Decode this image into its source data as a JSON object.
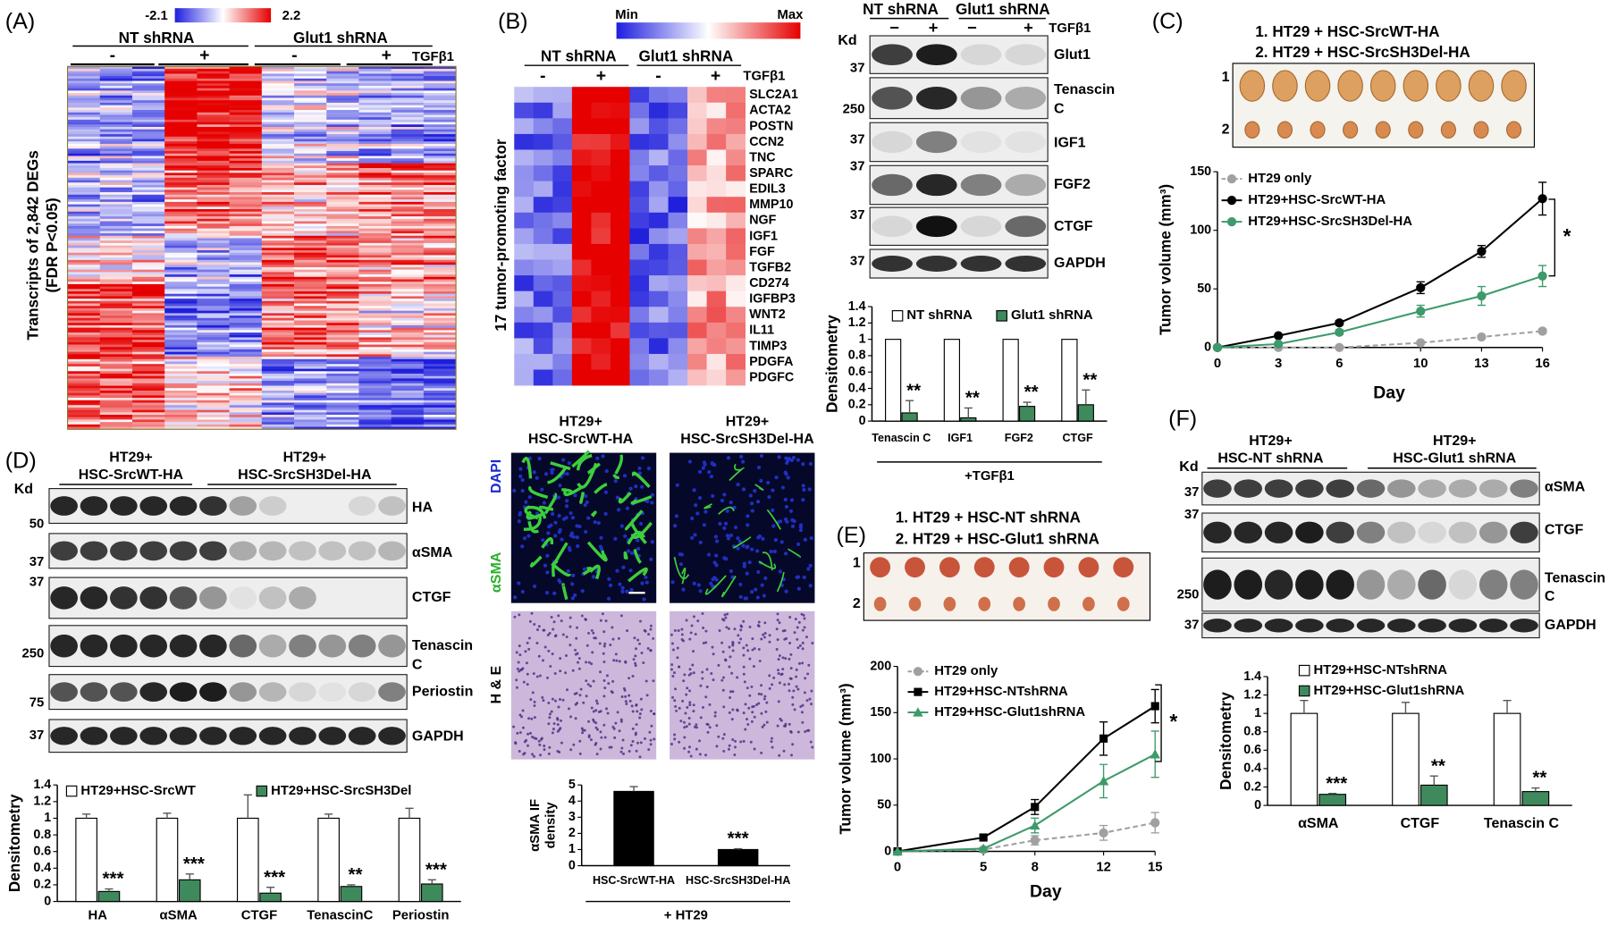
{
  "figure": {
    "panel_labels": [
      "(A)",
      "(B)",
      "(C)",
      "(D)",
      "(E)",
      "(F)"
    ],
    "panel_a": {
      "scale": [
        "-2.1",
        "2.2"
      ],
      "groups": [
        "NT shRNA",
        "Glut1 shRNA"
      ],
      "signs": [
        "-",
        "+",
        "-",
        "+"
      ],
      "treatment": "TGFβ1",
      "y_label": [
        "Transcripts of 2,842 DEGs",
        "(FDR P<0.05)"
      ]
    },
    "panel_b": {
      "scale": [
        "Min",
        "Max"
      ],
      "groups": [
        "NT shRNA",
        "Glut1 shRNA"
      ],
      "signs": [
        "-",
        "+",
        "-",
        "+"
      ],
      "treatment": "TGFβ1",
      "y_label": "17 tumor-promoting factor",
      "genes": [
        "SLC2A1",
        "ACTA2",
        "POSTN",
        "CCN2",
        "TNC",
        "SPARC",
        "EDIL3",
        "MMP10",
        "NGF",
        "IGF1",
        "FGF",
        "TGFB2",
        "CD274",
        "IGFBP3",
        "WNT2",
        "IL11",
        "TIMP3",
        "PDGFA",
        "PDGFC"
      ]
    },
    "blot_b": {
      "kd": "Kd",
      "groups": [
        "NT shRNA",
        "Glut1 shRNA"
      ],
      "signs": [
        "−",
        "+",
        "−",
        "+"
      ],
      "treatment": "TGFβ1",
      "proteins": [
        [
          "Glut1"
        ],
        [
          "Tenascin",
          "C"
        ],
        [
          "IGF1"
        ],
        [
          "FGF2"
        ],
        [
          "CTGF"
        ],
        [
          "GAPDH"
        ]
      ],
      "markers": [
        "37",
        "250",
        "37",
        "37",
        "37",
        "37"
      ]
    },
    "panel_c": {
      "legend": [
        "1. HT29 + HSC-SrcWT-HA",
        "2. HT29 + HSC-SrcSH3Del-HA"
      ],
      "rows": [
        "1",
        "2"
      ]
    },
    "blot_d": {
      "kd": "Kd",
      "groups": [
        [
          "HT29+",
          "HSC-SrcWT-HA"
        ],
        [
          "HT29+",
          "HSC-SrcSH3Del-HA"
        ]
      ],
      "proteins": [
        [
          "HA"
        ],
        [
          "αSMA"
        ],
        [
          "CTGF"
        ],
        [
          "Tenascin",
          "C"
        ],
        [
          "Periostin"
        ],
        [
          "GAPDH"
        ]
      ],
      "markers": [
        "50",
        "37",
        "37",
        "250",
        "75",
        "37"
      ]
    },
    "micrographs": {
      "groups": [
        [
          "HT29+",
          "HSC-SrcWT-HA"
        ],
        [
          "HT29+",
          "HSC-SrcSH3Del-HA"
        ]
      ],
      "stains": [
        "DAPI",
        "αSMA",
        "H & E"
      ]
    },
    "panel_e": {
      "legend": [
        "1. HT29 + HSC-NT shRNA",
        "2. HT29 + HSC-Glut1 shRNA"
      ],
      "rows": [
        "1",
        "2"
      ]
    },
    "blot_f": {
      "kd": "Kd",
      "groups": [
        [
          "HT29+",
          "HSC-NT shRNA"
        ],
        [
          "HT29+",
          "HSC-Glut1 shRNA"
        ]
      ],
      "proteins": [
        [
          "αSMA"
        ],
        [
          "CTGF"
        ],
        [
          "Tenascin",
          "C"
        ],
        [
          "GAPDH"
        ]
      ],
      "markers": [
        "37",
        "37",
        "250",
        "37"
      ]
    }
  },
  "chart_data": [
    {
      "type": "bar",
      "y_label": "Densitometry",
      "x_label": "+TGFβ1",
      "categories": [
        "Tenascin C",
        "IGF1",
        "FGF2",
        "CTGF"
      ],
      "series": [
        {
          "name": "NT shRNA",
          "color": "#ffffff",
          "values": [
            1,
            1,
            1,
            1
          ]
        },
        {
          "name": "Glut1 shRNA",
          "color": "#3f8a5c",
          "values": [
            0.1,
            0.04,
            0.18,
            0.2
          ],
          "errors": [
            0.15,
            0.12,
            0.05,
            0.18
          ],
          "significance": [
            "**",
            "**",
            "**",
            "**"
          ]
        }
      ],
      "ylim": [
        0,
        1.4
      ],
      "yticks": [
        0,
        0.2,
        0.4,
        0.6,
        0.8,
        1,
        1.2,
        1.4
      ]
    },
    {
      "type": "line",
      "y_label": "Tumor volume (mm³)",
      "x_label": "Day",
      "significance": "*",
      "x": [
        0,
        3,
        6,
        10,
        13,
        16
      ],
      "series": [
        {
          "name": "HT29 only",
          "color": "#a0a0a0",
          "marker": "circle",
          "dashed": true,
          "values": [
            0,
            0,
            0,
            4,
            9,
            14
          ],
          "errors": [
            0,
            0,
            0,
            1,
            1,
            2
          ]
        },
        {
          "name": "HT29+HSC-SrcWT-HA",
          "color": "#000000",
          "marker": "circle",
          "dashed": false,
          "values": [
            0,
            10,
            21,
            51,
            82,
            127
          ],
          "errors": [
            0,
            1,
            2,
            5,
            5,
            14
          ]
        },
        {
          "name": "HT29+HSC-SrcSH3Del-HA",
          "color": "#3d9a6a",
          "marker": "circle",
          "dashed": false,
          "values": [
            0,
            3,
            13,
            31,
            44,
            61
          ],
          "errors": [
            0,
            1,
            2,
            5,
            8,
            9
          ]
        }
      ],
      "xlim": [
        0,
        16
      ],
      "xticks": [
        0,
        3,
        6,
        10,
        13,
        16
      ],
      "ylim": [
        0,
        150
      ],
      "yticks": [
        0,
        50,
        100,
        150
      ]
    },
    {
      "type": "bar",
      "y_label": "Densitometry",
      "categories": [
        "HA",
        "αSMA",
        "CTGF",
        "TenascinC",
        "Periostin"
      ],
      "series": [
        {
          "name": "HT29+HSC-SrcWT",
          "color": "#ffffff",
          "values": [
            1,
            1,
            1,
            1,
            1
          ],
          "errors": [
            0.05,
            0.06,
            0.28,
            0.05,
            0.12
          ]
        },
        {
          "name": "HT29+HSC-SrcSH3Del",
          "color": "#3f8a5c",
          "values": [
            0.12,
            0.26,
            0.1,
            0.18,
            0.21
          ],
          "errors": [
            0.03,
            0.07,
            0.07,
            0.02,
            0.05
          ],
          "significance": [
            "***",
            "***",
            "***",
            "**",
            "***"
          ]
        }
      ],
      "ylim": [
        0,
        1.4
      ],
      "yticks": [
        0,
        0.2,
        0.4,
        0.6,
        0.8,
        1,
        1.2,
        1.4
      ]
    },
    {
      "type": "bar",
      "y_label": [
        "αSMA IF",
        "density"
      ],
      "x_label": "+ HT29",
      "categories": [
        "HSC-SrcWT-HA",
        "HSC-SrcSH3Del-HA"
      ],
      "values": [
        4.6,
        1.0
      ],
      "errors": [
        0.3,
        0.05
      ],
      "color": "#000000",
      "significance": [
        null,
        "***"
      ],
      "ylim": [
        0,
        5
      ],
      "yticks": [
        0,
        1,
        2,
        3,
        4,
        5
      ]
    },
    {
      "type": "line",
      "y_label": "Tumor volume (mm³)",
      "x_label": "Day",
      "significance": "*",
      "x": [
        0,
        5,
        8,
        12,
        15
      ],
      "series": [
        {
          "name": "HT29 only",
          "color": "#a0a0a0",
          "marker": "circle",
          "dashed": true,
          "values": [
            0,
            2,
            12,
            20,
            31
          ],
          "errors": [
            0,
            0,
            5,
            8,
            11
          ]
        },
        {
          "name": "HT29+HSC-NTshRNA",
          "color": "#000000",
          "marker": "square",
          "dashed": false,
          "values": [
            0,
            15,
            48,
            122,
            157
          ],
          "errors": [
            0,
            2,
            8,
            18,
            18
          ]
        },
        {
          "name": "HT29+HSC-Glut1shRNA",
          "color": "#3d9a6a",
          "marker": "triangle",
          "dashed": false,
          "values": [
            0,
            3,
            28,
            76,
            105
          ],
          "errors": [
            0,
            1,
            8,
            18,
            25
          ]
        }
      ],
      "xlim": [
        0,
        15
      ],
      "xticks": [
        0,
        5,
        8,
        12,
        15
      ],
      "ylim": [
        0,
        200
      ],
      "yticks": [
        0,
        50,
        100,
        150,
        200
      ]
    },
    {
      "type": "bar",
      "y_label": "Densitometry",
      "categories": [
        "αSMA",
        "CTGF",
        "Tenascin C"
      ],
      "series": [
        {
          "name": "HT29+HSC-NTshRNA",
          "color": "#ffffff",
          "values": [
            1,
            1,
            1
          ],
          "errors": [
            0.14,
            0.12,
            0.14
          ]
        },
        {
          "name": "HT29+HSC-Glut1shRNA",
          "color": "#3f8a5c",
          "values": [
            0.12,
            0.22,
            0.15
          ],
          "errors": [
            0.01,
            0.1,
            0.04
          ],
          "significance": [
            "***",
            "**",
            "**"
          ]
        }
      ],
      "ylim": [
        0,
        1.4
      ],
      "yticks": [
        0,
        0.2,
        0.4,
        0.6,
        0.8,
        1,
        1.2,
        1.4
      ]
    }
  ]
}
